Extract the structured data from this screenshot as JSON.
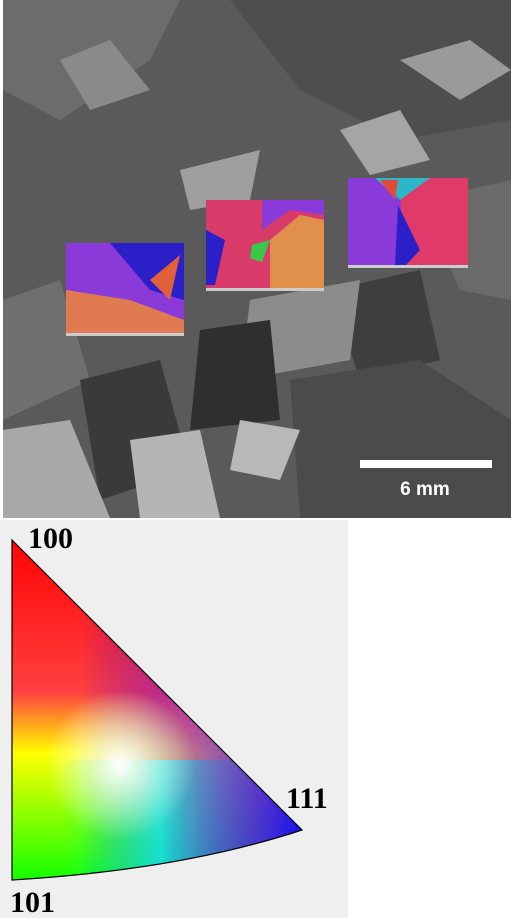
{
  "micrograph": {
    "scale_bar": {
      "label": "6 mm"
    }
  },
  "ipf_legend": {
    "top_label": "100",
    "right_label": "111",
    "bottom_label": "101"
  }
}
